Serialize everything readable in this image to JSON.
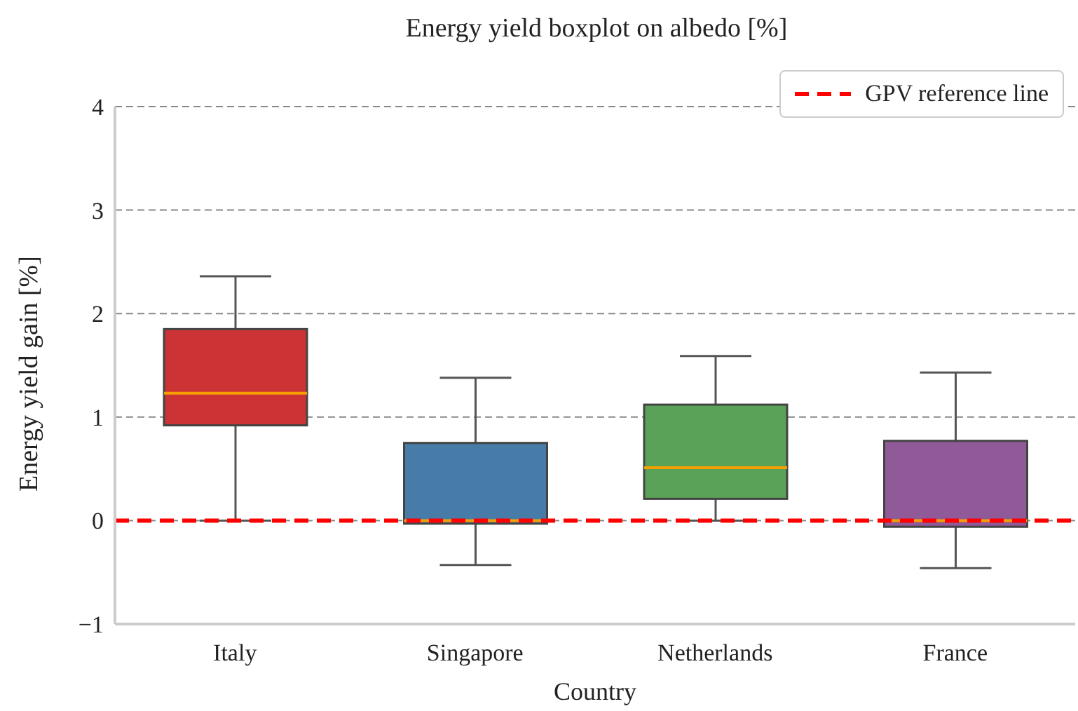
{
  "chart_data": {
    "type": "box",
    "title": "Energy yield boxplot on albedo [%]",
    "xlabel": "Country",
    "ylabel": "Energy yield gain [%]",
    "categories": [
      "Italy",
      "Singapore",
      "Netherlands",
      "France"
    ],
    "colors": [
      "#cb3335",
      "#477ca8",
      "#59a257",
      "#905998"
    ],
    "boxes": [
      {
        "low": 0,
        "q1": 0.92,
        "median": 1.23,
        "q3": 1.85,
        "high": 2.36
      },
      {
        "low": -0.43,
        "q1": -0.03,
        "median": 0,
        "q3": 0.75,
        "high": 1.38
      },
      {
        "low": 0,
        "q1": 0.21,
        "median": 0.51,
        "q3": 1.12,
        "high": 1.59
      },
      {
        "low": -0.46,
        "q1": -0.06,
        "median": 0,
        "q3": 0.77,
        "high": 1.43
      }
    ],
    "ylim": [
      -1,
      4
    ],
    "yticks": [
      -1,
      0,
      1,
      2,
      3,
      4
    ],
    "grid": "y",
    "legend": "top right",
    "ref_lines": [
      {
        "axis": "y",
        "value": 0,
        "label": "GPV reference line",
        "color": "#ff0000",
        "line_style": "dashed"
      }
    ]
  }
}
